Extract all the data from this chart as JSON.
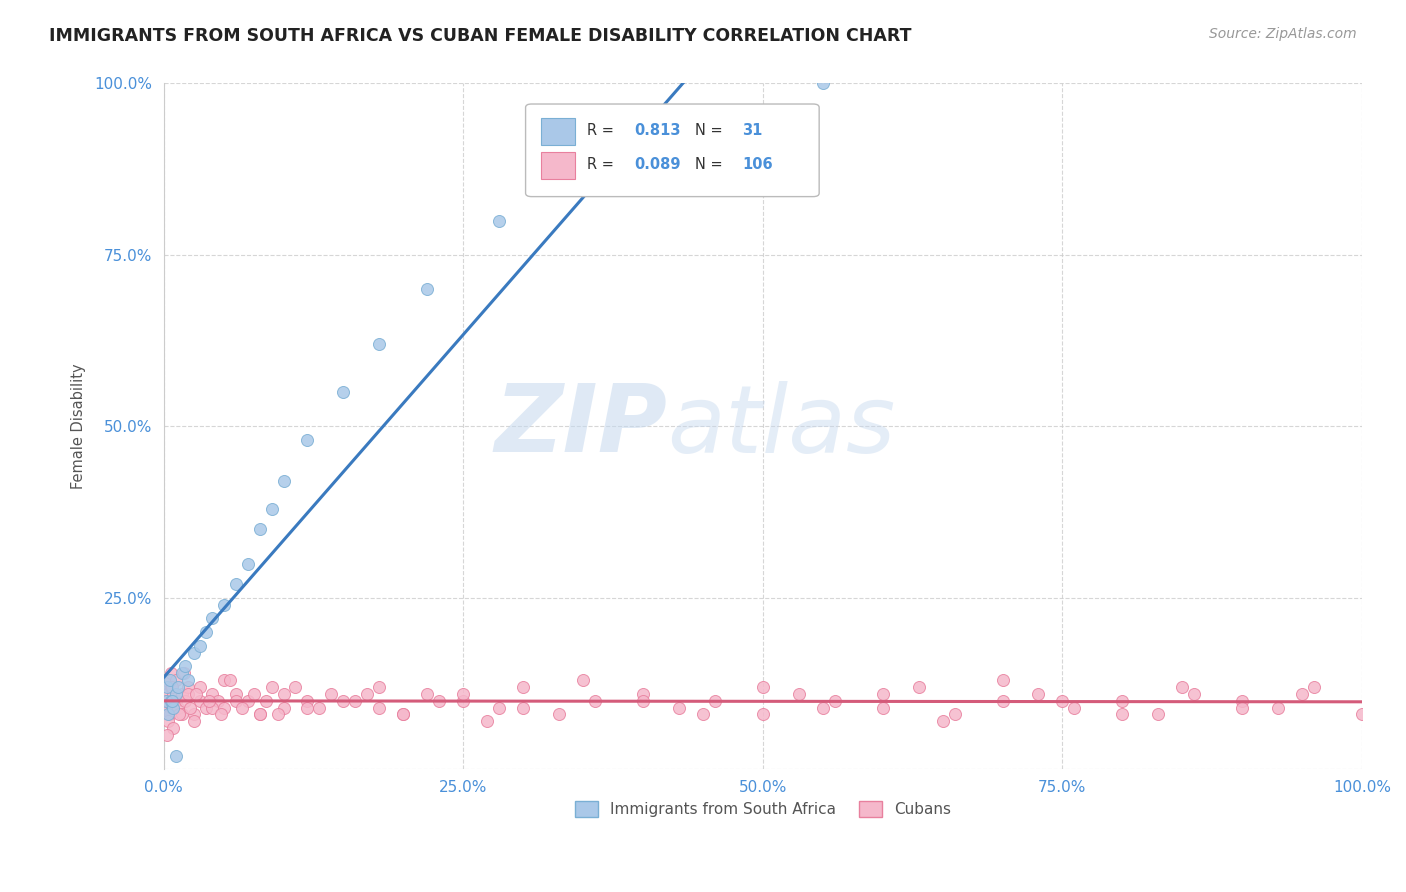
{
  "title": "IMMIGRANTS FROM SOUTH AFRICA VS CUBAN FEMALE DISABILITY CORRELATION CHART",
  "source": "Source: ZipAtlas.com",
  "ylabel": "Female Disability",
  "watermark_zip": "ZIP",
  "watermark_atlas": "atlas",
  "xlim": [
    0,
    1
  ],
  "ylim": [
    0,
    1
  ],
  "xticks": [
    0,
    0.25,
    0.5,
    0.75,
    1.0
  ],
  "yticks": [
    0,
    0.25,
    0.5,
    0.75,
    1.0
  ],
  "xtick_labels": [
    "0.0%",
    "25.0%",
    "50.0%",
    "75.0%",
    "100.0%"
  ],
  "ytick_labels": [
    "",
    "25.0%",
    "50.0%",
    "75.0%",
    "100.0%"
  ],
  "series1_color": "#aac8e8",
  "series1_edge": "#7aafd4",
  "series2_color": "#f5b8cb",
  "series2_edge": "#e8809e",
  "line1_color": "#3a7abf",
  "line2_color": "#d45b7a",
  "R1": 0.813,
  "N1": 31,
  "R2": 0.089,
  "N2": 106,
  "legend_label1": "Immigrants from South Africa",
  "legend_label2": "Cubans",
  "background_color": "#ffffff",
  "grid_color": "#cccccc",
  "title_color": "#222222",
  "label_color": "#555555",
  "stat_color": "#4a90d9",
  "series1_x": [
    0.002,
    0.004,
    0.003,
    0.006,
    0.008,
    0.005,
    0.01,
    0.012,
    0.007,
    0.015,
    0.02,
    0.018,
    0.025,
    0.03,
    0.035,
    0.04,
    0.05,
    0.06,
    0.07,
    0.08,
    0.09,
    0.1,
    0.12,
    0.15,
    0.18,
    0.22,
    0.28,
    0.35,
    0.42,
    0.55,
    0.01
  ],
  "series1_y": [
    0.1,
    0.08,
    0.12,
    0.1,
    0.09,
    0.13,
    0.11,
    0.12,
    0.1,
    0.14,
    0.13,
    0.15,
    0.17,
    0.18,
    0.2,
    0.22,
    0.24,
    0.27,
    0.3,
    0.35,
    0.38,
    0.42,
    0.48,
    0.55,
    0.62,
    0.7,
    0.8,
    0.88,
    0.94,
    1.0,
    0.02
  ],
  "series2_x": [
    0.001,
    0.002,
    0.003,
    0.004,
    0.005,
    0.006,
    0.007,
    0.008,
    0.009,
    0.01,
    0.012,
    0.015,
    0.018,
    0.02,
    0.025,
    0.03,
    0.035,
    0.04,
    0.045,
    0.05,
    0.06,
    0.07,
    0.08,
    0.09,
    0.1,
    0.12,
    0.14,
    0.16,
    0.18,
    0.2,
    0.22,
    0.25,
    0.28,
    0.3,
    0.33,
    0.36,
    0.4,
    0.43,
    0.46,
    0.5,
    0.53,
    0.56,
    0.6,
    0.63,
    0.66,
    0.7,
    0.73,
    0.76,
    0.8,
    0.83,
    0.86,
    0.9,
    0.93,
    0.96,
    1.0,
    0.002,
    0.004,
    0.006,
    0.008,
    0.01,
    0.015,
    0.02,
    0.025,
    0.03,
    0.04,
    0.05,
    0.06,
    0.08,
    0.1,
    0.12,
    0.15,
    0.18,
    0.2,
    0.25,
    0.3,
    0.35,
    0.4,
    0.45,
    0.5,
    0.55,
    0.6,
    0.65,
    0.7,
    0.75,
    0.8,
    0.85,
    0.9,
    0.95,
    0.003,
    0.007,
    0.013,
    0.017,
    0.022,
    0.027,
    0.038,
    0.048,
    0.055,
    0.065,
    0.075,
    0.085,
    0.095,
    0.11,
    0.13,
    0.17,
    0.23,
    0.27
  ],
  "series2_y": [
    0.1,
    0.09,
    0.11,
    0.1,
    0.08,
    0.12,
    0.09,
    0.11,
    0.1,
    0.1,
    0.09,
    0.11,
    0.1,
    0.12,
    0.08,
    0.1,
    0.09,
    0.11,
    0.1,
    0.09,
    0.11,
    0.1,
    0.08,
    0.12,
    0.09,
    0.1,
    0.11,
    0.1,
    0.09,
    0.08,
    0.11,
    0.1,
    0.09,
    0.12,
    0.08,
    0.1,
    0.11,
    0.09,
    0.1,
    0.08,
    0.11,
    0.1,
    0.09,
    0.12,
    0.08,
    0.1,
    0.11,
    0.09,
    0.1,
    0.08,
    0.11,
    0.1,
    0.09,
    0.12,
    0.08,
    0.13,
    0.07,
    0.14,
    0.06,
    0.13,
    0.08,
    0.11,
    0.07,
    0.12,
    0.09,
    0.13,
    0.1,
    0.08,
    0.11,
    0.09,
    0.1,
    0.12,
    0.08,
    0.11,
    0.09,
    0.13,
    0.1,
    0.08,
    0.12,
    0.09,
    0.11,
    0.07,
    0.13,
    0.1,
    0.08,
    0.12,
    0.09,
    0.11,
    0.05,
    0.12,
    0.08,
    0.14,
    0.09,
    0.11,
    0.1,
    0.08,
    0.13,
    0.09,
    0.11,
    0.1,
    0.08,
    0.12,
    0.09,
    0.11,
    0.1,
    0.07
  ]
}
